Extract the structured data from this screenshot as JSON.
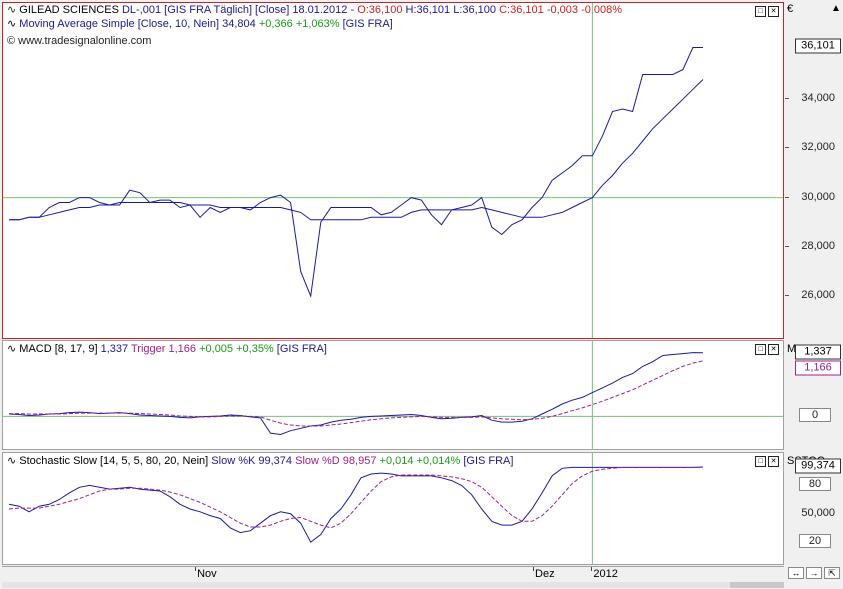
{
  "header_price": {
    "symbol_icon": "chart-line-icon",
    "name": "GILEAD SCIENCES",
    "info": "DL-,001 [GIS FRA  Täglich] [Close] 18.01.2012 -",
    "open": "O:36,100",
    "hl": "H:36,101 L:36,100",
    "close": "C:36,101",
    "change": "-0,003 -0,008%"
  },
  "header_ma": {
    "label": "Moving Average Simple [Close, 10, Nein]",
    "value": "34,804",
    "change": "+0,366 +1,063%",
    "source": "[GIS FRA]"
  },
  "copyright": "© www.tradesignalonline.com",
  "header_macd": {
    "label": "MACD [8, 17, 9]",
    "value": "1,337",
    "trigger_label": "Trigger",
    "trigger_value": "1,166",
    "change": "+0,005 +0,35%",
    "source": "[GIS FRA]"
  },
  "header_stoch": {
    "label": "Stochastic Slow [14, 5, 5, 80, 20, Nein]",
    "k_label": "Slow %K",
    "k_value": "99,374",
    "d_label": "Slow %D",
    "d_value": "98,957",
    "change": "+0,014 +0,014%",
    "source": "[GIS FRA]"
  },
  "scale_price": {
    "currency": "€",
    "ticks": [
      "36,101",
      "34,000",
      "32,000",
      "30,000",
      "28,000",
      "26,000"
    ],
    "last": "36,101"
  },
  "scale_macd": {
    "title": "MACD",
    "last": "1,337",
    "trigger_last": "1,166",
    "zero": "0"
  },
  "scale_stoch": {
    "title": "SSTOC",
    "last": "99,374",
    "levels": [
      "80",
      "50,000",
      "20"
    ]
  },
  "x_axis": {
    "labels": [
      "Nov",
      "Dez",
      "2012"
    ]
  },
  "colors": {
    "price": "#1a1aa0",
    "ma": "#1a1aa0",
    "macd": "#1a1aa0",
    "trigger": "#a0208a",
    "k": "#1a1aa0",
    "d": "#a0208a",
    "up": "#1a9a1a",
    "down": "#d02020",
    "grid": "#7ac07a"
  },
  "chart_data": [
    {
      "type": "line",
      "title": "GILEAD SCIENCES",
      "ylim": [
        24.5,
        37.5
      ],
      "series": [
        {
          "name": "GILEAD SCIENCES",
          "values": [
            29.1,
            29.1,
            29.2,
            29.2,
            29.6,
            29.8,
            29.8,
            30.0,
            30.0,
            29.8,
            29.7,
            29.7,
            30.3,
            30.2,
            29.8,
            29.9,
            29.9,
            29.6,
            29.7,
            29.2,
            29.6,
            29.4,
            29.6,
            29.6,
            29.5,
            29.8,
            30.0,
            30.1,
            29.8,
            27.0,
            26.0,
            29.0,
            29.6,
            29.6,
            29.6,
            29.6,
            29.6,
            29.3,
            29.4,
            29.7,
            30.0,
            29.9,
            29.3,
            28.9,
            29.5,
            29.6,
            29.7,
            30.0,
            28.8,
            28.5,
            28.9,
            29.1,
            29.6,
            30.0,
            30.7,
            31.0,
            31.3,
            31.7,
            31.7,
            32.5,
            33.5,
            33.6,
            33.5,
            35.0,
            35.0,
            35.0,
            35.0,
            35.2,
            36.1,
            36.1
          ]
        },
        {
          "name": "Moving Average Simple [Close, 10, Nein]",
          "values": [
            29.1,
            29.1,
            29.2,
            29.2,
            29.3,
            29.4,
            29.5,
            29.6,
            29.6,
            29.7,
            29.7,
            29.8,
            29.8,
            29.8,
            29.8,
            29.8,
            29.8,
            29.8,
            29.7,
            29.7,
            29.7,
            29.6,
            29.6,
            29.6,
            29.6,
            29.6,
            29.6,
            29.6,
            29.5,
            29.4,
            29.1,
            29.1,
            29.1,
            29.1,
            29.1,
            29.1,
            29.2,
            29.2,
            29.2,
            29.2,
            29.4,
            29.5,
            29.5,
            29.5,
            29.5,
            29.5,
            29.5,
            29.6,
            29.5,
            29.4,
            29.3,
            29.2,
            29.2,
            29.2,
            29.3,
            29.4,
            29.6,
            29.8,
            30.0,
            30.5,
            30.9,
            31.4,
            31.8,
            32.3,
            32.8,
            33.2,
            33.6,
            34.0,
            34.4,
            34.8
          ]
        }
      ]
    },
    {
      "type": "line",
      "title": "MACD [8, 17, 9]",
      "ylim": [
        -0.6,
        1.5
      ],
      "series": [
        {
          "name": "MACD",
          "values": [
            0.05,
            0.04,
            0.02,
            0.03,
            0.05,
            0.06,
            0.08,
            0.09,
            0.08,
            0.06,
            0.07,
            0.08,
            0.06,
            0.03,
            0.02,
            0.01,
            0.0,
            -0.02,
            -0.03,
            -0.01,
            0.0,
            0.01,
            0.03,
            0.02,
            -0.01,
            -0.03,
            -0.35,
            -0.38,
            -0.3,
            -0.25,
            -0.2,
            -0.18,
            -0.12,
            -0.08,
            -0.06,
            -0.02,
            0.0,
            0.01,
            0.02,
            0.03,
            0.04,
            0.02,
            -0.02,
            -0.05,
            -0.04,
            -0.02,
            -0.01,
            0.02,
            -0.08,
            -0.12,
            -0.12,
            -0.1,
            -0.05,
            0.05,
            0.15,
            0.26,
            0.34,
            0.4,
            0.5,
            0.6,
            0.7,
            0.82,
            0.9,
            1.05,
            1.15,
            1.28,
            1.3,
            1.32,
            1.34,
            1.337
          ]
        },
        {
          "name": "Trigger",
          "values": [
            0.06,
            0.06,
            0.05,
            0.05,
            0.05,
            0.05,
            0.06,
            0.07,
            0.07,
            0.07,
            0.07,
            0.07,
            0.07,
            0.06,
            0.05,
            0.04,
            0.03,
            0.01,
            0.0,
            -0.01,
            -0.01,
            0.0,
            0.01,
            0.01,
            0.0,
            -0.01,
            -0.08,
            -0.14,
            -0.18,
            -0.2,
            -0.2,
            -0.2,
            -0.18,
            -0.16,
            -0.13,
            -0.1,
            -0.07,
            -0.05,
            -0.03,
            -0.02,
            -0.01,
            0.0,
            -0.01,
            -0.02,
            -0.02,
            -0.02,
            -0.02,
            -0.01,
            -0.03,
            -0.05,
            -0.06,
            -0.07,
            -0.06,
            -0.04,
            0.0,
            0.06,
            0.12,
            0.18,
            0.25,
            0.32,
            0.4,
            0.48,
            0.56,
            0.66,
            0.76,
            0.86,
            0.96,
            1.05,
            1.12,
            1.166
          ]
        }
      ]
    },
    {
      "type": "line",
      "title": "Stochastic Slow [14, 5, 5, 80, 20, Nein]",
      "ylim": [
        0,
        110
      ],
      "series": [
        {
          "name": "Slow %K",
          "values": [
            60,
            58,
            52,
            58,
            60,
            65,
            72,
            78,
            80,
            78,
            76,
            77,
            78,
            76,
            75,
            74,
            68,
            60,
            55,
            52,
            48,
            45,
            35,
            30,
            32,
            40,
            48,
            52,
            50,
            40,
            20,
            28,
            45,
            55,
            70,
            88,
            92,
            93,
            92,
            90,
            90,
            90,
            90,
            88,
            85,
            80,
            70,
            55,
            42,
            38,
            38,
            42,
            55,
            72,
            90,
            98,
            99,
            99,
            99,
            99,
            99,
            99,
            99,
            99,
            99,
            99,
            99,
            99,
            99,
            99.4
          ]
        },
        {
          "name": "Slow %D",
          "values": [
            55,
            56,
            56,
            56,
            58,
            60,
            63,
            66,
            70,
            74,
            76,
            76,
            77,
            77,
            76,
            75,
            73,
            70,
            66,
            62,
            57,
            52,
            46,
            40,
            36,
            36,
            38,
            42,
            45,
            46,
            42,
            38,
            35,
            40,
            50,
            62,
            74,
            84,
            89,
            91,
            91,
            91,
            91,
            90,
            89,
            87,
            84,
            78,
            68,
            58,
            48,
            42,
            42,
            48,
            58,
            70,
            82,
            90,
            95,
            97,
            98,
            99,
            99,
            99,
            99,
            99,
            99,
            99,
            99,
            98.96
          ]
        }
      ]
    }
  ]
}
